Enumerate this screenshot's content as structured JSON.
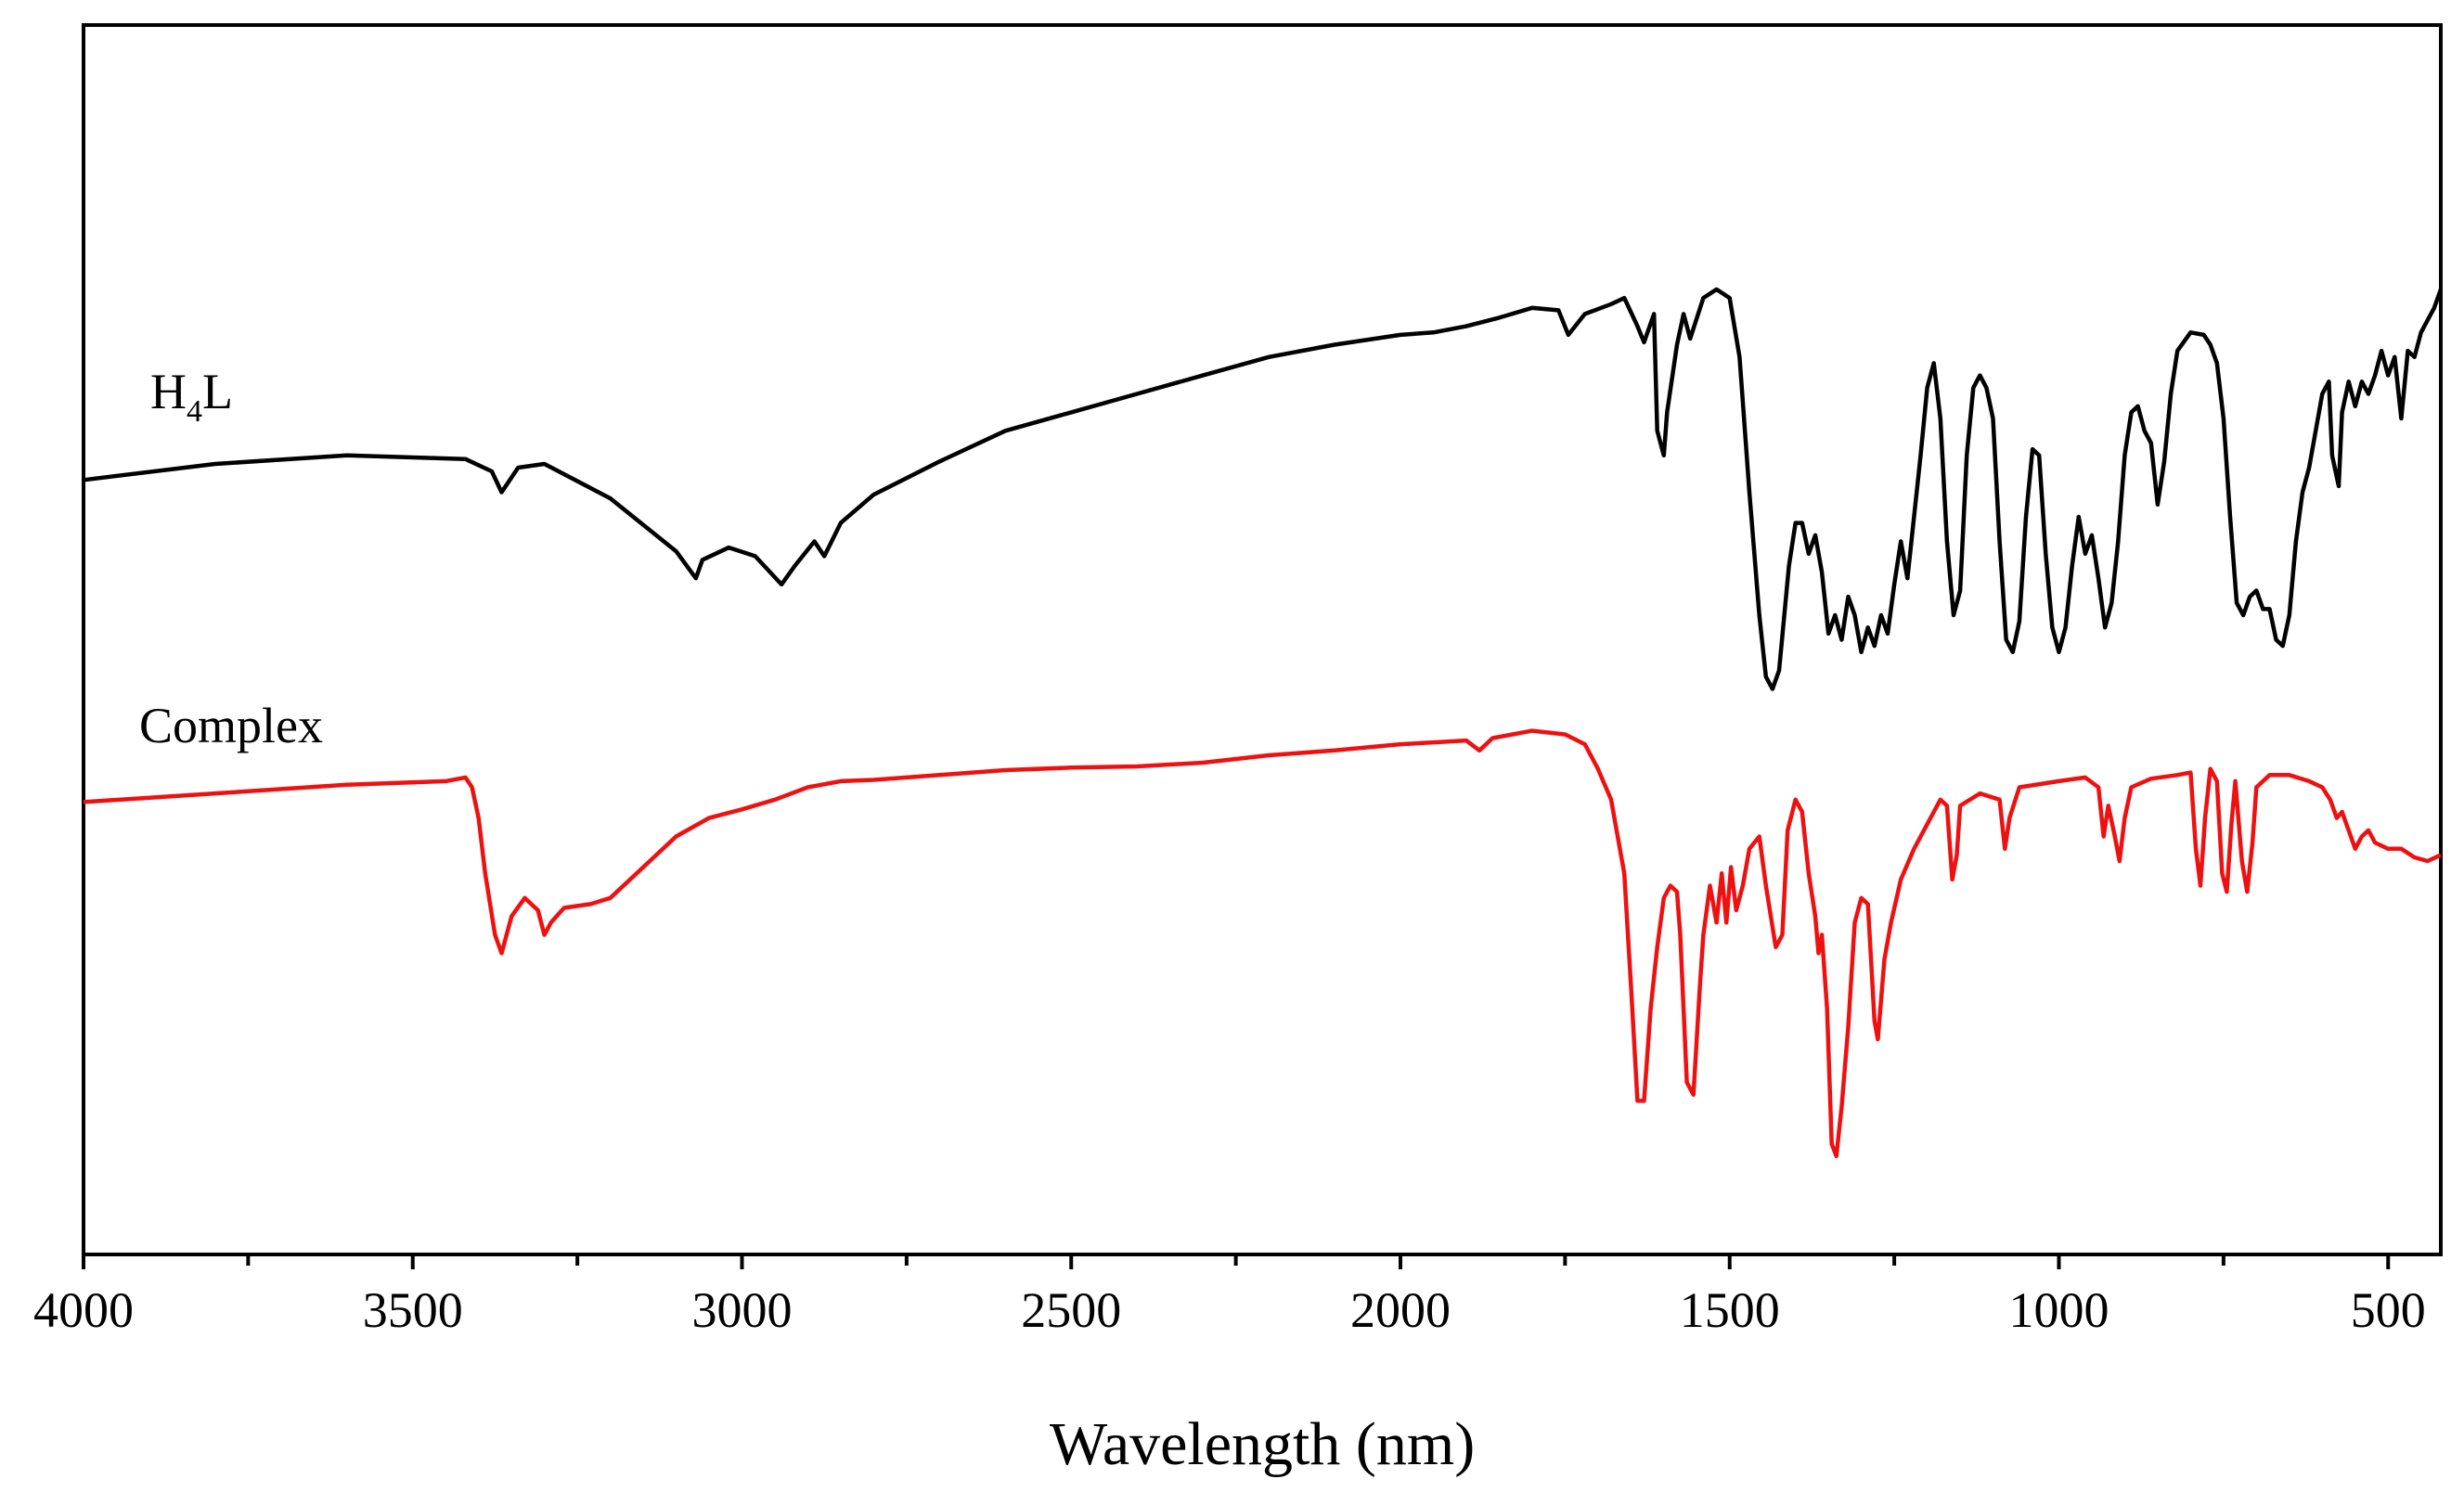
{
  "chart_data": {
    "type": "line",
    "title": "",
    "xlabel": "Wavelength (nm)",
    "ylabel": "",
    "xlim": [
      4000,
      420
    ],
    "x_reversed": true,
    "ylim": [
      0,
      100
    ],
    "grid": false,
    "x_ticks": [
      4000,
      3500,
      3000,
      2500,
      2000,
      1500,
      1000,
      500
    ],
    "x_tick_labels": [
      "4000",
      "3500",
      "3000",
      "2500",
      "2000",
      "1500",
      "1000",
      "500"
    ],
    "series": [
      {
        "name": "H4L",
        "label_main": "H",
        "label_sub": "4",
        "label_end": "L",
        "color": "#000000",
        "points": [
          [
            4000,
            63.0
          ],
          [
            3800,
            64.3
          ],
          [
            3600,
            65.0
          ],
          [
            3420,
            64.7
          ],
          [
            3380,
            63.7
          ],
          [
            3365,
            62.0
          ],
          [
            3340,
            64.0
          ],
          [
            3300,
            64.3
          ],
          [
            3200,
            61.5
          ],
          [
            3100,
            57.2
          ],
          [
            3070,
            55.0
          ],
          [
            3060,
            56.5
          ],
          [
            3020,
            57.5
          ],
          [
            2980,
            56.8
          ],
          [
            2940,
            54.5
          ],
          [
            2920,
            56.0
          ],
          [
            2890,
            58.0
          ],
          [
            2875,
            56.8
          ],
          [
            2850,
            59.5
          ],
          [
            2800,
            61.8
          ],
          [
            2700,
            64.5
          ],
          [
            2600,
            67.0
          ],
          [
            2500,
            68.5
          ],
          [
            2400,
            70.0
          ],
          [
            2300,
            71.5
          ],
          [
            2200,
            73.0
          ],
          [
            2100,
            74.0
          ],
          [
            2000,
            74.8
          ],
          [
            1950,
            75.0
          ],
          [
            1900,
            75.5
          ],
          [
            1850,
            76.2
          ],
          [
            1800,
            77.0
          ],
          [
            1760,
            76.8
          ],
          [
            1745,
            74.8
          ],
          [
            1720,
            76.5
          ],
          [
            1680,
            77.3
          ],
          [
            1660,
            77.8
          ],
          [
            1640,
            75.5
          ],
          [
            1630,
            74.2
          ],
          [
            1615,
            76.5
          ],
          [
            1610,
            67.0
          ],
          [
            1600,
            65.0
          ],
          [
            1595,
            68.5
          ],
          [
            1580,
            74.0
          ],
          [
            1570,
            76.5
          ],
          [
            1560,
            74.5
          ],
          [
            1540,
            77.8
          ],
          [
            1520,
            78.5
          ],
          [
            1500,
            77.8
          ],
          [
            1485,
            73.0
          ],
          [
            1470,
            62.0
          ],
          [
            1455,
            52.0
          ],
          [
            1445,
            47.0
          ],
          [
            1435,
            46.0
          ],
          [
            1425,
            47.5
          ],
          [
            1410,
            56.0
          ],
          [
            1400,
            59.5
          ],
          [
            1390,
            59.5
          ],
          [
            1380,
            57.0
          ],
          [
            1370,
            58.5
          ],
          [
            1360,
            55.5
          ],
          [
            1350,
            50.5
          ],
          [
            1340,
            52.0
          ],
          [
            1330,
            50.0
          ],
          [
            1320,
            53.5
          ],
          [
            1310,
            52.0
          ],
          [
            1300,
            49.0
          ],
          [
            1290,
            51.0
          ],
          [
            1280,
            49.5
          ],
          [
            1270,
            52.0
          ],
          [
            1260,
            50.5
          ],
          [
            1250,
            54.5
          ],
          [
            1240,
            58.0
          ],
          [
            1230,
            55.0
          ],
          [
            1220,
            60.0
          ],
          [
            1210,
            65.0
          ],
          [
            1200,
            70.5
          ],
          [
            1190,
            72.5
          ],
          [
            1180,
            68.0
          ],
          [
            1170,
            58.0
          ],
          [
            1160,
            52.0
          ],
          [
            1150,
            54.0
          ],
          [
            1140,
            65.0
          ],
          [
            1130,
            70.5
          ],
          [
            1120,
            71.5
          ],
          [
            1110,
            70.5
          ],
          [
            1100,
            68.0
          ],
          [
            1090,
            58.0
          ],
          [
            1080,
            50.0
          ],
          [
            1070,
            49.0
          ],
          [
            1060,
            51.5
          ],
          [
            1050,
            60.0
          ],
          [
            1040,
            65.5
          ],
          [
            1030,
            65.0
          ],
          [
            1020,
            57.0
          ],
          [
            1010,
            51.0
          ],
          [
            1000,
            49.0
          ],
          [
            990,
            51.0
          ],
          [
            980,
            56.0
          ],
          [
            970,
            60.0
          ],
          [
            960,
            57.0
          ],
          [
            950,
            58.5
          ],
          [
            940,
            55.0
          ],
          [
            930,
            51.0
          ],
          [
            920,
            53.0
          ],
          [
            910,
            58.0
          ],
          [
            900,
            65.0
          ],
          [
            890,
            68.5
          ],
          [
            880,
            69.0
          ],
          [
            870,
            67.0
          ],
          [
            860,
            66.0
          ],
          [
            850,
            61.0
          ],
          [
            840,
            64.5
          ],
          [
            830,
            70.0
          ],
          [
            820,
            73.5
          ],
          [
            800,
            75.0
          ],
          [
            780,
            74.8
          ],
          [
            770,
            74.0
          ],
          [
            760,
            72.5
          ],
          [
            750,
            68.0
          ],
          [
            740,
            60.0
          ],
          [
            730,
            53.0
          ],
          [
            720,
            52.0
          ],
          [
            710,
            53.5
          ],
          [
            700,
            54.0
          ],
          [
            690,
            52.5
          ],
          [
            680,
            52.5
          ],
          [
            670,
            50.0
          ],
          [
            660,
            49.5
          ],
          [
            650,
            52.0
          ],
          [
            640,
            58.0
          ],
          [
            630,
            62.0
          ],
          [
            620,
            64.0
          ],
          [
            610,
            67.0
          ],
          [
            600,
            70.0
          ],
          [
            590,
            71.0
          ],
          [
            585,
            65.0
          ],
          [
            575,
            62.5
          ],
          [
            570,
            68.5
          ],
          [
            560,
            71.0
          ],
          [
            550,
            69.0
          ],
          [
            540,
            71.0
          ],
          [
            530,
            70.0
          ],
          [
            520,
            71.5
          ],
          [
            510,
            73.5
          ],
          [
            500,
            71.5
          ],
          [
            490,
            73.0
          ],
          [
            480,
            68.0
          ],
          [
            470,
            73.5
          ],
          [
            460,
            73.0
          ],
          [
            450,
            75.0
          ],
          [
            440,
            76.0
          ],
          [
            430,
            77.0
          ],
          [
            420,
            78.5
          ]
        ]
      },
      {
        "name": "Complex",
        "color": "#ee1111",
        "points": [
          [
            4000,
            36.8
          ],
          [
            3800,
            37.5
          ],
          [
            3600,
            38.2
          ],
          [
            3450,
            38.5
          ],
          [
            3420,
            38.8
          ],
          [
            3410,
            38.0
          ],
          [
            3400,
            35.5
          ],
          [
            3390,
            31.0
          ],
          [
            3375,
            26.0
          ],
          [
            3365,
            24.5
          ],
          [
            3350,
            27.5
          ],
          [
            3330,
            29.0
          ],
          [
            3310,
            28.0
          ],
          [
            3300,
            26.0
          ],
          [
            3290,
            27.0
          ],
          [
            3270,
            28.2
          ],
          [
            3230,
            28.5
          ],
          [
            3200,
            29.0
          ],
          [
            3150,
            31.5
          ],
          [
            3100,
            34.0
          ],
          [
            3050,
            35.5
          ],
          [
            3000,
            36.2
          ],
          [
            2950,
            37.0
          ],
          [
            2900,
            38.0
          ],
          [
            2850,
            38.5
          ],
          [
            2800,
            38.6
          ],
          [
            2700,
            39.0
          ],
          [
            2600,
            39.4
          ],
          [
            2500,
            39.6
          ],
          [
            2400,
            39.7
          ],
          [
            2300,
            40.0
          ],
          [
            2200,
            40.6
          ],
          [
            2100,
            41.0
          ],
          [
            2000,
            41.5
          ],
          [
            1900,
            41.8
          ],
          [
            1880,
            41.0
          ],
          [
            1860,
            42.0
          ],
          [
            1800,
            42.6
          ],
          [
            1750,
            42.3
          ],
          [
            1720,
            41.5
          ],
          [
            1700,
            39.5
          ],
          [
            1680,
            37.0
          ],
          [
            1660,
            31.0
          ],
          [
            1650,
            22.0
          ],
          [
            1640,
            12.5
          ],
          [
            1630,
            12.5
          ],
          [
            1620,
            20.0
          ],
          [
            1610,
            25.0
          ],
          [
            1600,
            29.0
          ],
          [
            1590,
            30.0
          ],
          [
            1580,
            29.5
          ],
          [
            1575,
            26.0
          ],
          [
            1565,
            14.0
          ],
          [
            1555,
            13.0
          ],
          [
            1545,
            22.0
          ],
          [
            1540,
            26.0
          ],
          [
            1530,
            30.0
          ],
          [
            1520,
            27.0
          ],
          [
            1512,
            31.0
          ],
          [
            1505,
            27.0
          ],
          [
            1498,
            31.5
          ],
          [
            1490,
            28.0
          ],
          [
            1480,
            30.0
          ],
          [
            1470,
            33.0
          ],
          [
            1455,
            34.0
          ],
          [
            1445,
            30.0
          ],
          [
            1430,
            25.0
          ],
          [
            1420,
            26.0
          ],
          [
            1412,
            34.5
          ],
          [
            1400,
            37.0
          ],
          [
            1390,
            36.0
          ],
          [
            1380,
            31.0
          ],
          [
            1370,
            27.5
          ],
          [
            1365,
            24.5
          ],
          [
            1360,
            26.0
          ],
          [
            1352,
            20.0
          ],
          [
            1345,
            9.0
          ],
          [
            1338,
            8.0
          ],
          [
            1330,
            12.0
          ],
          [
            1320,
            18.5
          ],
          [
            1310,
            27.0
          ],
          [
            1300,
            29.0
          ],
          [
            1290,
            28.5
          ],
          [
            1280,
            19.0
          ],
          [
            1275,
            17.5
          ],
          [
            1265,
            24.0
          ],
          [
            1255,
            27.0
          ],
          [
            1240,
            30.5
          ],
          [
            1220,
            33.0
          ],
          [
            1200,
            35.0
          ],
          [
            1190,
            36.0
          ],
          [
            1180,
            37.0
          ],
          [
            1170,
            36.5
          ],
          [
            1162,
            30.5
          ],
          [
            1155,
            32.5
          ],
          [
            1150,
            36.5
          ],
          [
            1120,
            37.5
          ],
          [
            1090,
            37.0
          ],
          [
            1082,
            33.0
          ],
          [
            1075,
            35.5
          ],
          [
            1060,
            38.0
          ],
          [
            1000,
            38.5
          ],
          [
            960,
            38.8
          ],
          [
            940,
            38.0
          ],
          [
            932,
            34.0
          ],
          [
            925,
            36.5
          ],
          [
            915,
            34.0
          ],
          [
            908,
            32.0
          ],
          [
            900,
            35.5
          ],
          [
            890,
            38.0
          ],
          [
            860,
            38.7
          ],
          [
            820,
            39.0
          ],
          [
            800,
            39.2
          ],
          [
            792,
            33.0
          ],
          [
            785,
            30.0
          ],
          [
            778,
            35.5
          ],
          [
            770,
            39.5
          ],
          [
            760,
            38.5
          ],
          [
            752,
            31.0
          ],
          [
            745,
            29.5
          ],
          [
            738,
            35.0
          ],
          [
            732,
            38.5
          ],
          [
            722,
            32.0
          ],
          [
            714,
            29.5
          ],
          [
            706,
            33.5
          ],
          [
            700,
            38.0
          ],
          [
            680,
            39.0
          ],
          [
            650,
            39.0
          ],
          [
            620,
            38.5
          ],
          [
            600,
            38.0
          ],
          [
            588,
            37.0
          ],
          [
            578,
            35.5
          ],
          [
            570,
            36.0
          ],
          [
            560,
            34.5
          ],
          [
            550,
            33.0
          ],
          [
            540,
            34.0
          ],
          [
            530,
            34.5
          ],
          [
            520,
            33.5
          ],
          [
            500,
            33.0
          ],
          [
            480,
            33.0
          ],
          [
            460,
            32.3
          ],
          [
            440,
            32.0
          ],
          [
            420,
            32.5
          ]
        ]
      }
    ]
  }
}
